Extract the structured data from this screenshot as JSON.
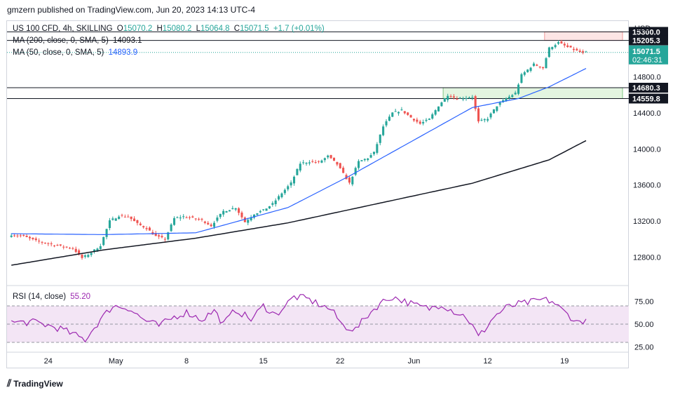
{
  "header": {
    "publisher": "gmzern published on TradingView.com, Jun 20, 2023 14:13 UTC-4"
  },
  "footer": {
    "brand": "TradingView"
  },
  "legend": {
    "symbol": "US 100 CFD, 4h, SKILLING",
    "o_label": "O",
    "o": "15070.2",
    "h_label": "H",
    "h": "15080.2",
    "l_label": "L",
    "l": "15064.8",
    "c_label": "C",
    "c": "15071.5",
    "change": "+1.7 (+0.01%)",
    "ma200_label": "MA (200, close, 0, SMA, 5)",
    "ma200_value": "14093.1",
    "ma50_label": "MA (50, close, 0, SMA, 5)",
    "ma50_value": "14893.9",
    "rsi_label": "RSI (14, close)",
    "rsi_value": "55.20"
  },
  "colors": {
    "up": "#26a69a",
    "down": "#ef5350",
    "ma50": "#2962ff",
    "ma200": "#131722",
    "rsi": "#9c27b0",
    "rsi_band": "#f3e5f5",
    "zone_red": "#fde5e5",
    "zone_green": "#e3f5e0",
    "price_tag": "#26a69a"
  },
  "chart_data": [
    {
      "type": "candlestick",
      "title": "US 100 CFD, 4h, SKILLING",
      "currency": "USD",
      "ylim": [
        12500,
        15420
      ],
      "y_ticks": [
        12800,
        13200,
        13600,
        14000,
        14400,
        14800
      ],
      "y_tick_labels": [
        "12800.0",
        "13200.0",
        "13600.0",
        "14000.0",
        "14400.0",
        "14800.0"
      ],
      "x_ticks": [
        "24",
        "May",
        "8",
        "15",
        "22",
        "Jun",
        "12",
        "19"
      ],
      "x_tick_index": [
        12,
        34,
        57,
        82,
        107,
        131,
        155,
        180
      ],
      "x_count": 198,
      "last_price": "15071.5",
      "countdown": "02:46:31",
      "levels": [
        {
          "label": "15300.0",
          "value": 15300.0
        },
        {
          "label": "15205.3",
          "value": 15205.3
        },
        {
          "label": "14680.3",
          "value": 14680.3
        },
        {
          "label": "14559.8",
          "value": 14559.8
        }
      ],
      "zones": [
        {
          "from_index": 174,
          "to_index": 198,
          "low": 15205.3,
          "high": 15300.0,
          "color": "red"
        },
        {
          "from_index": 141,
          "to_index": 198,
          "low": 14559.8,
          "high": 14680.3,
          "color": "green"
        }
      ],
      "close_anchors": [
        [
          0,
          13050
        ],
        [
          4,
          13030
        ],
        [
          8,
          12980
        ],
        [
          12,
          12950
        ],
        [
          16,
          12920
        ],
        [
          20,
          12900
        ],
        [
          23,
          12790
        ],
        [
          26,
          12850
        ],
        [
          29,
          12930
        ],
        [
          32,
          13200
        ],
        [
          35,
          13260
        ],
        [
          38,
          13250
        ],
        [
          41,
          13170
        ],
        [
          44,
          13120
        ],
        [
          47,
          13030
        ],
        [
          50,
          13000
        ],
        [
          53,
          13230
        ],
        [
          56,
          13250
        ],
        [
          59,
          13230
        ],
        [
          62,
          13210
        ],
        [
          65,
          13150
        ],
        [
          69,
          13310
        ],
        [
          73,
          13350
        ],
        [
          76,
          13190
        ],
        [
          79,
          13280
        ],
        [
          82,
          13320
        ],
        [
          85,
          13390
        ],
        [
          88,
          13510
        ],
        [
          91,
          13620
        ],
        [
          94,
          13840
        ],
        [
          97,
          13860
        ],
        [
          100,
          13850
        ],
        [
          103,
          13920
        ],
        [
          106,
          13830
        ],
        [
          110,
          13620
        ],
        [
          113,
          13860
        ],
        [
          116,
          13900
        ],
        [
          118,
          13960
        ],
        [
          121,
          14250
        ],
        [
          124,
          14400
        ],
        [
          127,
          14430
        ],
        [
          130,
          14350
        ],
        [
          133,
          14280
        ],
        [
          136,
          14330
        ],
        [
          139,
          14480
        ],
        [
          142,
          14600
        ],
        [
          145,
          14560
        ],
        [
          148,
          14570
        ],
        [
          150,
          14580
        ],
        [
          152,
          14300
        ],
        [
          155,
          14340
        ],
        [
          158,
          14480
        ],
        [
          161,
          14560
        ],
        [
          164,
          14620
        ],
        [
          166,
          14820
        ],
        [
          170,
          14940
        ],
        [
          173,
          14900
        ],
        [
          175,
          15120
        ],
        [
          178,
          15180
        ],
        [
          181,
          15130
        ],
        [
          184,
          15090
        ],
        [
          186,
          15060
        ],
        [
          187,
          15071.5
        ]
      ],
      "ma50_anchors": [
        [
          0,
          13060
        ],
        [
          30,
          13050
        ],
        [
          60,
          13070
        ],
        [
          90,
          13350
        ],
        [
          110,
          13700
        ],
        [
          130,
          14080
        ],
        [
          150,
          14460
        ],
        [
          165,
          14560
        ],
        [
          175,
          14690
        ],
        [
          187,
          14893.9
        ]
      ],
      "ma200_anchors": [
        [
          0,
          12710
        ],
        [
          30,
          12880
        ],
        [
          60,
          13010
        ],
        [
          90,
          13180
        ],
        [
          120,
          13400
        ],
        [
          150,
          13620
        ],
        [
          175,
          13880
        ],
        [
          187,
          14093.1
        ]
      ]
    },
    {
      "type": "line",
      "title": "RSI (14, close)",
      "ylim": [
        20,
        90
      ],
      "y_ticks": [
        25,
        50,
        75
      ],
      "y_tick_labels": [
        "25.00",
        "50.00",
        "75.00"
      ],
      "band": [
        30,
        70
      ],
      "last_value": 55.2,
      "anchors": [
        [
          0,
          52
        ],
        [
          8,
          52
        ],
        [
          16,
          45
        ],
        [
          24,
          33
        ],
        [
          29,
          55
        ],
        [
          33,
          70
        ],
        [
          38,
          68
        ],
        [
          43,
          55
        ],
        [
          48,
          48
        ],
        [
          53,
          58
        ],
        [
          57,
          63
        ],
        [
          62,
          55
        ],
        [
          66,
          65
        ],
        [
          69,
          50
        ],
        [
          73,
          66
        ],
        [
          78,
          55
        ],
        [
          82,
          70
        ],
        [
          86,
          60
        ],
        [
          89,
          70
        ],
        [
          92,
          80
        ],
        [
          96,
          78
        ],
        [
          100,
          72
        ],
        [
          104,
          66
        ],
        [
          108,
          48
        ],
        [
          112,
          44
        ],
        [
          116,
          60
        ],
        [
          120,
          73
        ],
        [
          124,
          80
        ],
        [
          128,
          75
        ],
        [
          132,
          70
        ],
        [
          136,
          67
        ],
        [
          140,
          72
        ],
        [
          144,
          64
        ],
        [
          148,
          58
        ],
        [
          150,
          48
        ],
        [
          152,
          36
        ],
        [
          154,
          44
        ],
        [
          157,
          58
        ],
        [
          161,
          68
        ],
        [
          165,
          72
        ],
        [
          169,
          74
        ],
        [
          173,
          77
        ],
        [
          176,
          75
        ],
        [
          179,
          66
        ],
        [
          182,
          58
        ],
        [
          184,
          52
        ],
        [
          186,
          54
        ],
        [
          187,
          55.2
        ]
      ]
    }
  ]
}
